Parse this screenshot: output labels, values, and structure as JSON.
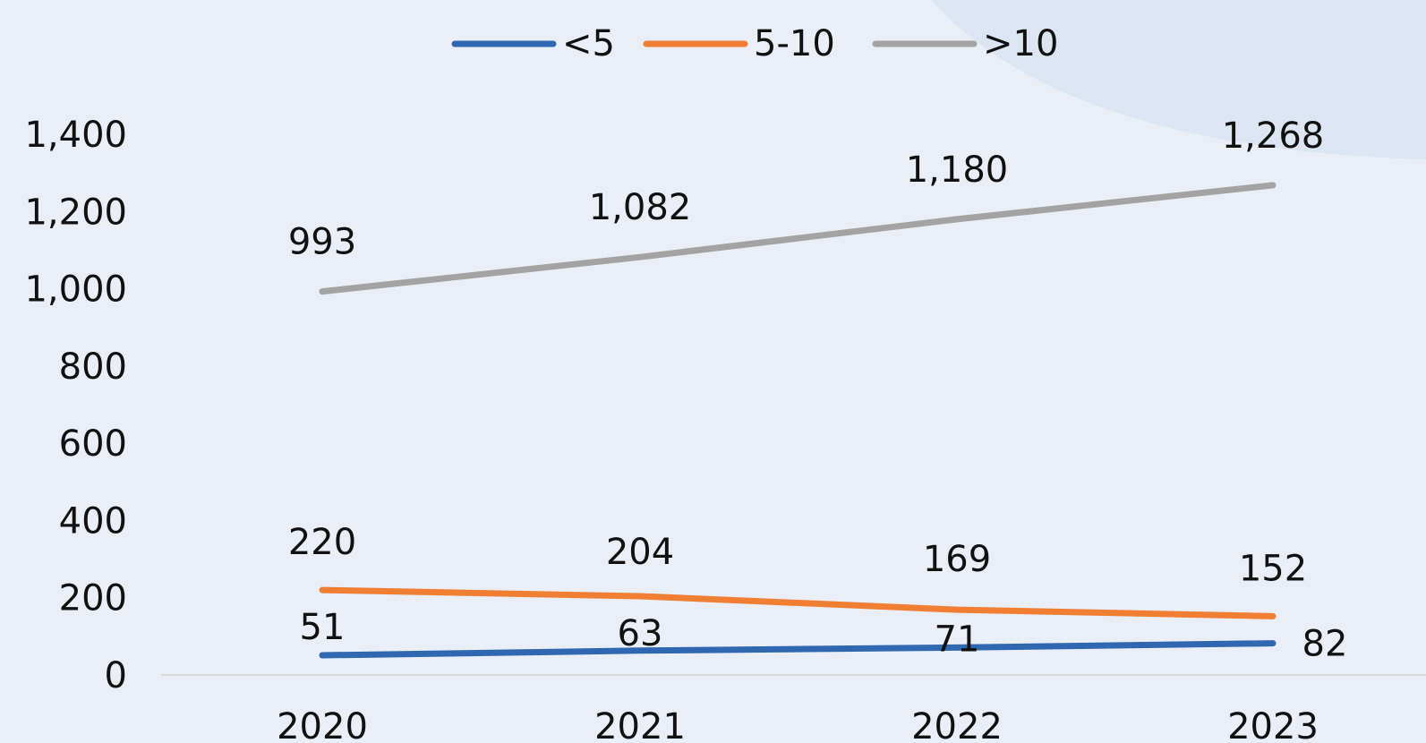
{
  "chart_data": {
    "type": "line",
    "categories": [
      "2020",
      "2021",
      "2022",
      "2023"
    ],
    "series": [
      {
        "name": "<5",
        "values": [
          51,
          63,
          71,
          82
        ],
        "labels": [
          "51",
          "63",
          "71",
          "82"
        ],
        "color": "#2f67b0"
      },
      {
        "name": "5-10",
        "values": [
          220,
          204,
          169,
          152
        ],
        "labels": [
          "220",
          "204",
          "169",
          "152"
        ],
        "color": "#f07f33"
      },
      {
        "name": ">10",
        "values": [
          993,
          1082,
          1180,
          1268
        ],
        "labels": [
          "993",
          "1,082",
          "1,180",
          "1,268"
        ],
        "color": "#a3a3a3"
      }
    ],
    "y_ticks": [
      "0",
      "200",
      "400",
      "600",
      "800",
      "1,000",
      "1,200",
      "1,400"
    ],
    "ylim": [
      0,
      1400
    ],
    "grid": false,
    "legend_position": "top-center",
    "title": "",
    "xlabel": "",
    "ylabel": ""
  },
  "colors": {
    "background": "#e9eef7",
    "decor": "#dce6f3",
    "axis": "#d9d9d9"
  }
}
